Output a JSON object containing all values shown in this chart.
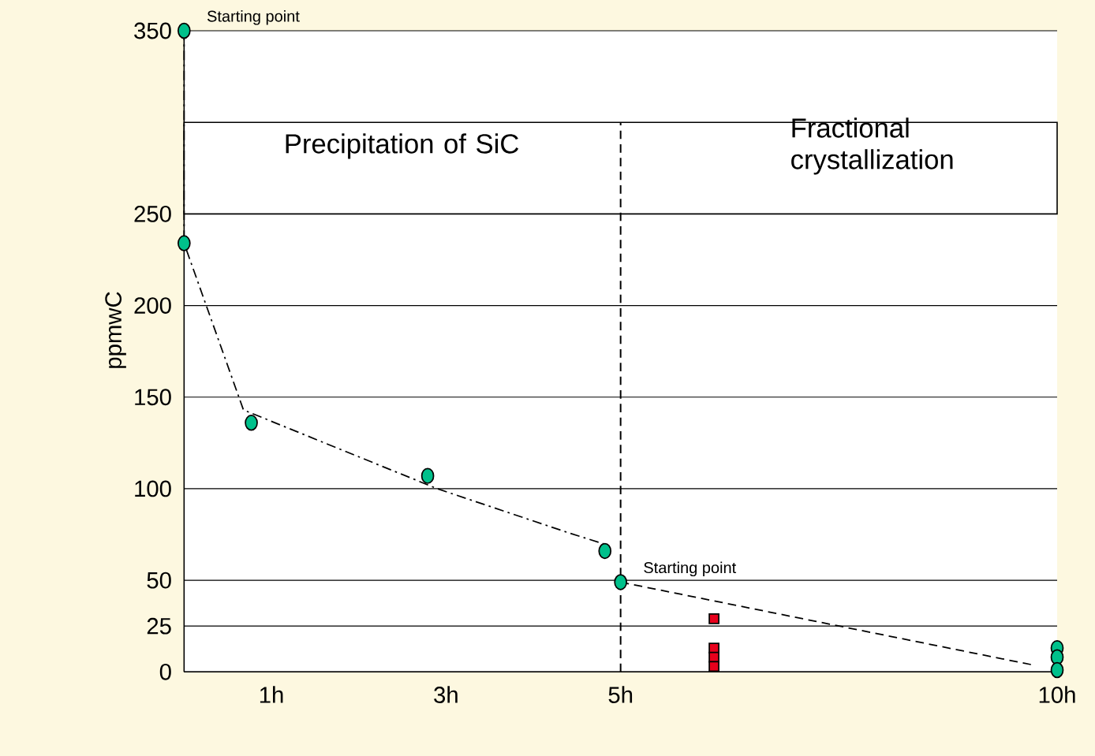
{
  "chart_data": {
    "type": "scatter",
    "ylabel": "ppmwC",
    "xlim": [
      0,
      10
    ],
    "ylim": [
      0,
      350
    ],
    "xticks": [
      {
        "value": 1,
        "label": "1h"
      },
      {
        "value": 3,
        "label": "3h"
      },
      {
        "value": 5,
        "label": "5h"
      },
      {
        "value": 10,
        "label": "10h"
      }
    ],
    "yticks": [
      0,
      25,
      50,
      100,
      150,
      200,
      250,
      350
    ],
    "grid": "y",
    "series": [
      {
        "marker": "circle",
        "color": "#00c08b",
        "x": [
          0,
          0,
          0.77,
          2.79,
          4.82,
          5,
          10,
          10,
          10
        ],
        "values": [
          350,
          234,
          136,
          107,
          66,
          49,
          13,
          8,
          1
        ]
      },
      {
        "type": "scatter",
        "marker": "square",
        "color": "#e8001c",
        "x": [
          6.07,
          6.07,
          6.07,
          6.07
        ],
        "values": [
          29,
          13,
          8,
          3
        ]
      },
      {
        "type": "line",
        "line_style": "dashdot",
        "color": "#000000",
        "x": [
          0,
          0,
          0.68,
          2.9,
          4.4,
          4.8
        ],
        "values": [
          350,
          234,
          143,
          100,
          76,
          70
        ]
      },
      {
        "type": "line",
        "line_style": "dashed",
        "color": "#000000",
        "x": [
          5,
          9.7
        ],
        "values": [
          49,
          4
        ]
      }
    ],
    "ref_lines": [
      {
        "axis": "x",
        "value": 5,
        "line_style": "dashed",
        "color": "#000000"
      }
    ],
    "bands": [
      {
        "axis": "y",
        "from": 250,
        "to": 300,
        "color": "#ffffff"
      }
    ],
    "annotations": [
      {
        "text": "Starting point",
        "x": 0,
        "y": 350
      },
      {
        "text": "Starting point",
        "x": 5,
        "y": 49
      },
      "Precipitation of SiC",
      "Fractional crystallization"
    ]
  }
}
